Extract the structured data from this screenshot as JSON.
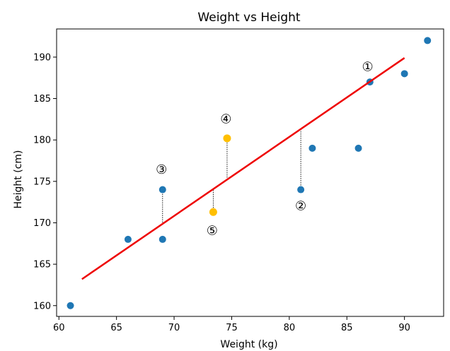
{
  "chart_data": {
    "type": "scatter",
    "title": "Weight vs Height",
    "xlabel": "Weight (kg)",
    "ylabel": "Height (cm)",
    "xlim": [
      59.8,
      93.4
    ],
    "ylim": [
      158.7,
      193.4
    ],
    "xticks": [
      60,
      65,
      70,
      75,
      80,
      85,
      90
    ],
    "yticks": [
      160,
      165,
      170,
      175,
      180,
      185,
      190
    ],
    "xtick_labels": [
      "60",
      "65",
      "70",
      "75",
      "80",
      "85",
      "90"
    ],
    "ytick_labels": [
      "160",
      "165",
      "170",
      "175",
      "180",
      "185",
      "190"
    ],
    "grid": false,
    "points": [
      {
        "x": 61,
        "y": 160
      },
      {
        "x": 66,
        "y": 168
      },
      {
        "x": 69,
        "y": 168
      },
      {
        "x": 69,
        "y": 174
      },
      {
        "x": 81,
        "y": 174
      },
      {
        "x": 82,
        "y": 179
      },
      {
        "x": 86,
        "y": 179
      },
      {
        "x": 87,
        "y": 187
      },
      {
        "x": 90,
        "y": 188
      },
      {
        "x": 92,
        "y": 192
      }
    ],
    "highlighted_points": [
      {
        "x": 74.6,
        "y": 180.2
      },
      {
        "x": 73.4,
        "y": 171.3
      }
    ],
    "fit_line": {
      "x": [
        62,
        90
      ],
      "y": [
        163.2,
        189.9
      ]
    },
    "residuals": [
      {
        "x": 69,
        "y_from": 174,
        "y_to": 169.8
      },
      {
        "x": 81,
        "y_from": 174,
        "y_to": 181.3
      },
      {
        "x": 74.6,
        "y_from": 180.2,
        "y_to": 175.2
      },
      {
        "x": 73.4,
        "y_from": 171.3,
        "y_to": 174.0
      }
    ],
    "annotations": [
      {
        "text": "①",
        "x": 86.8,
        "y": 188.8
      },
      {
        "text": "②",
        "x": 81.0,
        "y": 172.0
      },
      {
        "text": "③",
        "x": 68.9,
        "y": 176.4
      },
      {
        "text": "④",
        "x": 74.5,
        "y": 182.5
      },
      {
        "text": "⑤",
        "x": 73.3,
        "y": 169.0
      }
    ],
    "colors": {
      "point": "#1f77b4",
      "highlight": "#ffbf00",
      "fit_line": "#ee0000",
      "residual": "#000000",
      "axis": "#000000"
    }
  }
}
